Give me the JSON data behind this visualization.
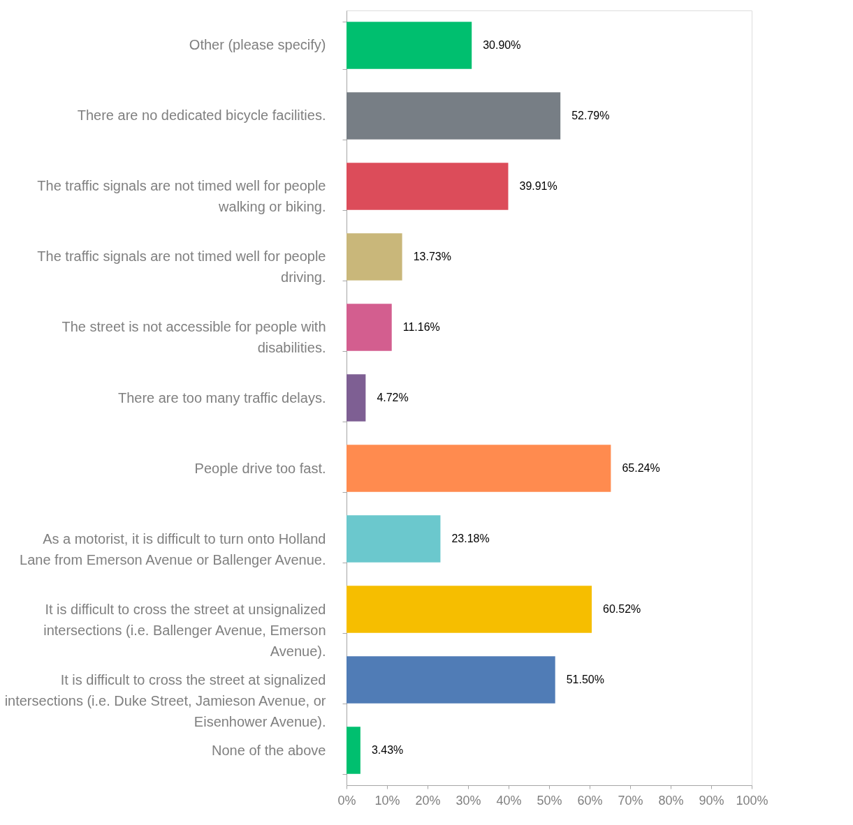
{
  "chart_data": {
    "type": "bar",
    "orientation": "horizontal",
    "categories": [
      "Other (please specify)",
      "There are no dedicated bicycle facilities.",
      "The traffic signals are not timed well for people walking or biking.",
      "The traffic signals are not timed well for people driving.",
      "The street is not accessible for people with disabilities.",
      "There are too many traffic delays.",
      "People drive too fast.",
      "As a motorist, it is difficult to turn onto Holland Lane from Emerson Avenue or Ballenger Avenue.",
      "It is difficult to cross the street at unsignalized intersections (i.e. Ballenger Avenue, Emerson Avenue).",
      "It is difficult to cross the street at signalized intersections (i.e. Duke Street, Jamieson Avenue, or Eisenhower Avenue).",
      "None of the above"
    ],
    "values": [
      30.9,
      52.79,
      39.91,
      13.73,
      11.16,
      4.72,
      65.24,
      23.18,
      60.52,
      51.5,
      3.43
    ],
    "value_labels": [
      "30.90%",
      "52.79%",
      "39.91%",
      "13.73%",
      "11.16%",
      "4.72%",
      "65.24%",
      "23.18%",
      "60.52%",
      "51.50%",
      "3.43%"
    ],
    "colors": [
      "#00bf6f",
      "#777e85",
      "#dc4c5a",
      "#c9b77a",
      "#d35e8f",
      "#7e5f93",
      "#ff8b4f",
      "#6bc8cd",
      "#f6be00",
      "#507cb6",
      "#00bf6f"
    ],
    "xlim": [
      0,
      100
    ],
    "xticks": [
      {
        "value": 0,
        "label": "0%"
      },
      {
        "value": 10,
        "label": "10%"
      },
      {
        "value": 20,
        "label": "20%"
      },
      {
        "value": 30,
        "label": "30%"
      },
      {
        "value": 40,
        "label": "40%"
      },
      {
        "value": 50,
        "label": "50%"
      },
      {
        "value": 60,
        "label": "60%"
      },
      {
        "value": 70,
        "label": "70%"
      },
      {
        "value": 80,
        "label": "80%"
      },
      {
        "value": 90,
        "label": "90%"
      },
      {
        "value": 100,
        "label": "100%"
      }
    ],
    "grid": false
  }
}
